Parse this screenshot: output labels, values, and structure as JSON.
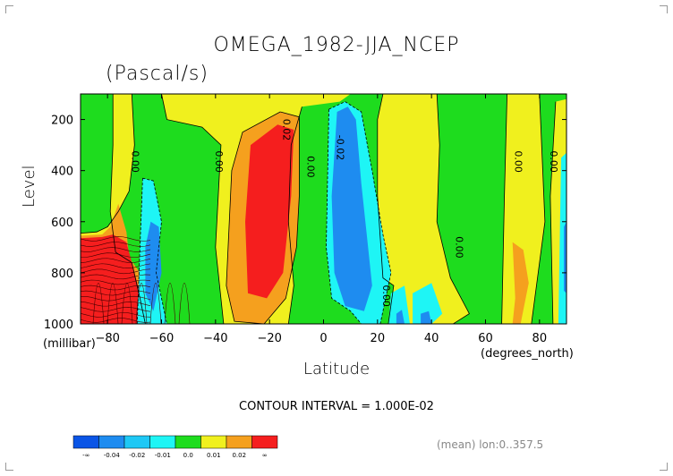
{
  "chart_data": {
    "type": "heatmap",
    "title": "OMEGA_1982-JJA_NCEP",
    "units": "(Pascal/s)",
    "xlabel": "Latitude",
    "xunit": "(degrees_north)",
    "ylabel": "Level",
    "yunit": "(millibar)",
    "xlim": [
      -90,
      90
    ],
    "ylim": [
      1000,
      100
    ],
    "x_ticks": [
      -80,
      -60,
      -40,
      -20,
      0,
      20,
      40,
      60,
      80
    ],
    "y_ticks": [
      200,
      400,
      600,
      800,
      1000
    ],
    "contour_interval": "CONTOUR INTERVAL = 1.000E-02",
    "contour_labels": [
      {
        "text": "0.00",
        "lat": -71,
        "lev": 365
      },
      {
        "text": "0.00",
        "lat": -40,
        "lev": 365
      },
      {
        "text": "0.02",
        "lat": -15,
        "lev": 240
      },
      {
        "text": "0.00",
        "lat": -6,
        "lev": 385
      },
      {
        "text": "-0.02",
        "lat": 5,
        "lev": 310
      },
      {
        "text": "0.00",
        "lat": 49,
        "lev": 700
      },
      {
        "text": "0.00",
        "lat": 22,
        "lev": 890
      },
      {
        "text": "0.00",
        "lat": 71,
        "lev": 365
      },
      {
        "text": "0.00",
        "lat": 84,
        "lev": 365
      }
    ],
    "legend": {
      "bins": [
        {
          "color": "#0a55e6",
          "label": "-∞"
        },
        {
          "color": "#1e8cf0",
          "label": "-0.04"
        },
        {
          "color": "#1ec8f5",
          "label": "-0.02"
        },
        {
          "color": "#1ef5f5",
          "label": "-0.01"
        },
        {
          "color": "#1edc1e",
          "label": "0.0"
        },
        {
          "color": "#f0f01e",
          "label": "0.01"
        },
        {
          "color": "#f5a01e",
          "label": "0.02"
        },
        {
          "color": "#f51e1e",
          "label": "∞"
        }
      ]
    },
    "regions": [
      {
        "level": "0.0",
        "color": "#1edc1e",
        "poly": [
          [
            -90,
            100
          ],
          [
            90,
            100
          ],
          [
            90,
            1000
          ],
          [
            -90,
            1000
          ]
        ]
      },
      {
        "level": "0.01",
        "color": "#f0f01e",
        "poly": [
          [
            -78,
            100
          ],
          [
            -71,
            100
          ],
          [
            -70,
            300
          ],
          [
            -72,
            480
          ],
          [
            -76,
            560
          ],
          [
            -80,
            620
          ],
          [
            -84,
            640
          ],
          [
            -90,
            645
          ],
          [
            -90,
            1000
          ],
          [
            -66,
            1000
          ],
          [
            -68,
            900
          ],
          [
            -71,
            760
          ],
          [
            -77,
            720
          ],
          [
            -79,
            560
          ],
          [
            -78,
            300
          ]
        ]
      },
      {
        "level": "0.01",
        "color": "#f0f01e",
        "poly": [
          [
            -60,
            100
          ],
          [
            10,
            100
          ],
          [
            6,
            130
          ],
          [
            -8,
            150
          ],
          [
            -12,
            300
          ],
          [
            -13,
            600
          ],
          [
            -11,
            850
          ],
          [
            -13,
            1000
          ],
          [
            -37,
            1000
          ],
          [
            -40,
            700
          ],
          [
            -38,
            300
          ],
          [
            -45,
            230
          ],
          [
            -58,
            200
          ]
        ]
      },
      {
        "level": "0.01",
        "color": "#f0f01e",
        "poly": [
          [
            22,
            100
          ],
          [
            42,
            100
          ],
          [
            43,
            300
          ],
          [
            42,
            600
          ],
          [
            47,
            820
          ],
          [
            54,
            960
          ],
          [
            48,
            1000
          ],
          [
            24,
            1000
          ],
          [
            26,
            850
          ],
          [
            22,
            820
          ],
          [
            20,
            500
          ],
          [
            20,
            200
          ]
        ]
      },
      {
        "level": "0.01",
        "color": "#f0f01e",
        "poly": [
          [
            68,
            100
          ],
          [
            80,
            100
          ],
          [
            82,
            600
          ],
          [
            77,
            1000
          ],
          [
            66,
            1000
          ],
          [
            67,
            500
          ]
        ]
      },
      {
        "level": "0.01",
        "color": "#f0f01e",
        "poly": [
          [
            86,
            130
          ],
          [
            90,
            120
          ],
          [
            90,
            1000
          ],
          [
            85,
            1000
          ],
          [
            84,
            500
          ]
        ]
      },
      {
        "level": "0.02",
        "color": "#f5a01e",
        "poly": [
          [
            -90,
            655
          ],
          [
            -82,
            650
          ],
          [
            -79,
            620
          ],
          [
            -76,
            530
          ],
          [
            -73,
            640
          ],
          [
            -72,
            740
          ],
          [
            -68,
            800
          ],
          [
            -64,
            1000
          ],
          [
            -90,
            1000
          ]
        ]
      },
      {
        "level": "0.02",
        "color": "#f5a01e",
        "poly": [
          [
            -16,
            170
          ],
          [
            -9,
            190
          ],
          [
            -9,
            500
          ],
          [
            -10,
            700
          ],
          [
            -14,
            900
          ],
          [
            -22,
            1000
          ],
          [
            -33,
            990
          ],
          [
            -36,
            850
          ],
          [
            -34,
            400
          ],
          [
            -30,
            250
          ]
        ]
      },
      {
        "level": "0.02",
        "color": "#f5a01e",
        "poly": [
          [
            70,
            680
          ],
          [
            74,
            710
          ],
          [
            76,
            840
          ],
          [
            73,
            1000
          ],
          [
            70,
            1000
          ],
          [
            71,
            900
          ]
        ]
      },
      {
        "level": "inf",
        "color": "#f51e1e",
        "poly": [
          [
            -90,
            665
          ],
          [
            -82,
            660
          ],
          [
            -78,
            650
          ],
          [
            -73,
            680
          ],
          [
            -70,
            800
          ],
          [
            -65,
            1000
          ],
          [
            -90,
            1000
          ]
        ]
      },
      {
        "level": "inf",
        "color": "#f51e1e",
        "poly": [
          [
            -17,
            220
          ],
          [
            -11,
            240
          ],
          [
            -12,
            500
          ],
          [
            -15,
            800
          ],
          [
            -21,
            900
          ],
          [
            -28,
            880
          ],
          [
            -29,
            600
          ],
          [
            -27,
            300
          ]
        ]
      },
      {
        "level": "-0.01",
        "color": "#1ef5f5",
        "poly": [
          [
            -67,
            430
          ],
          [
            -63,
            440
          ],
          [
            -60,
            600
          ],
          [
            -62,
            800
          ],
          [
            -58,
            1000
          ],
          [
            -69,
            1000
          ],
          [
            -68,
            700
          ]
        ]
      },
      {
        "level": "-0.01",
        "color": "#1ef5f5",
        "poly": [
          [
            2,
            160
          ],
          [
            8,
            130
          ],
          [
            14,
            170
          ],
          [
            18,
            400
          ],
          [
            22,
            650
          ],
          [
            25,
            800
          ],
          [
            21,
            1000
          ],
          [
            14,
            1000
          ],
          [
            10,
            950
          ],
          [
            3,
            900
          ],
          [
            1,
            700
          ]
        ]
      },
      {
        "level": "-0.01",
        "color": "#1ef5f5",
        "poly": [
          [
            25,
            880
          ],
          [
            30,
            850
          ],
          [
            32,
            1000
          ],
          [
            24,
            1000
          ]
        ]
      },
      {
        "level": "-0.01",
        "color": "#1ef5f5",
        "poly": [
          [
            33,
            880
          ],
          [
            40,
            840
          ],
          [
            44,
            960
          ],
          [
            40,
            1000
          ],
          [
            33,
            1000
          ]
        ]
      },
      {
        "level": "-0.01",
        "color": "#1ef5f5",
        "poly": [
          [
            88,
            350
          ],
          [
            90,
            330
          ],
          [
            90,
            1000
          ],
          [
            87,
            1000
          ]
        ]
      },
      {
        "level": "-0.02",
        "color": "#1e8cf0",
        "poly": [
          [
            -64,
            600
          ],
          [
            -61,
            620
          ],
          [
            -60,
            800
          ],
          [
            -63,
            950
          ],
          [
            -66,
            880
          ],
          [
            -66,
            700
          ]
        ]
      },
      {
        "level": "-0.02",
        "color": "#1e8cf0",
        "poly": [
          [
            5,
            170
          ],
          [
            9,
            150
          ],
          [
            12,
            200
          ],
          [
            14,
            450
          ],
          [
            16,
            650
          ],
          [
            18,
            850
          ],
          [
            15,
            950
          ],
          [
            8,
            930
          ],
          [
            4,
            800
          ],
          [
            3,
            500
          ]
        ]
      },
      {
        "level": "-0.02",
        "color": "#1e8cf0",
        "poly": [
          [
            27,
            960
          ],
          [
            29,
            945
          ],
          [
            30,
            1000
          ],
          [
            27,
            1000
          ]
        ]
      },
      {
        "level": "-0.02",
        "color": "#1e8cf0",
        "poly": [
          [
            36,
            960
          ],
          [
            39,
            950
          ],
          [
            40,
            1000
          ],
          [
            36,
            1000
          ]
        ]
      },
      {
        "level": "-0.02",
        "color": "#1e8cf0",
        "poly": [
          [
            89,
            620
          ],
          [
            90,
            600
          ],
          [
            90,
            880
          ],
          [
            89,
            870
          ]
        ]
      }
    ],
    "contours": [
      [
        [
          -78,
          100
        ],
        [
          -78,
          300
        ],
        [
          -79,
          560
        ],
        [
          -77,
          720
        ],
        [
          -71,
          760
        ],
        [
          -68,
          900
        ],
        [
          -66,
          1000
        ]
      ],
      [
        [
          -71,
          100
        ],
        [
          -70,
          300
        ],
        [
          -72,
          480
        ],
        [
          -76,
          560
        ],
        [
          -80,
          620
        ],
        [
          -84,
          640
        ],
        [
          -90,
          645
        ]
      ],
      [
        [
          -60,
          100
        ],
        [
          -58,
          200
        ],
        [
          -45,
          230
        ],
        [
          -38,
          300
        ],
        [
          -40,
          700
        ],
        [
          -37,
          1000
        ]
      ],
      [
        [
          -8,
          150
        ],
        [
          -12,
          300
        ],
        [
          -13,
          600
        ],
        [
          -11,
          850
        ],
        [
          -13,
          1000
        ]
      ],
      [
        [
          22,
          100
        ],
        [
          20,
          200
        ],
        [
          20,
          500
        ],
        [
          22,
          820
        ],
        [
          26,
          850
        ],
        [
          24,
          1000
        ]
      ],
      [
        [
          42,
          100
        ],
        [
          43,
          300
        ],
        [
          42,
          600
        ],
        [
          47,
          820
        ],
        [
          54,
          960
        ],
        [
          48,
          1000
        ]
      ],
      [
        [
          68,
          100
        ],
        [
          67,
          500
        ],
        [
          66,
          1000
        ]
      ],
      [
        [
          80,
          100
        ],
        [
          82,
          600
        ],
        [
          77,
          1000
        ]
      ],
      [
        [
          86,
          130
        ],
        [
          84,
          500
        ],
        [
          85,
          1000
        ]
      ],
      [
        [
          -16,
          170
        ],
        [
          -30,
          250
        ],
        [
          -34,
          400
        ],
        [
          -36,
          850
        ],
        [
          -33,
          990
        ],
        [
          -22,
          1000
        ]
      ],
      [
        [
          -16,
          170
        ],
        [
          -9,
          190
        ],
        [
          -9,
          500
        ],
        [
          -10,
          700
        ],
        [
          -14,
          900
        ],
        [
          -22,
          1000
        ]
      ]
    ],
    "dashed_contours": [
      [
        [
          -67,
          430
        ],
        [
          -68,
          700
        ],
        [
          -69,
          1000
        ]
      ],
      [
        [
          -67,
          430
        ],
        [
          -63,
          440
        ],
        [
          -60,
          600
        ],
        [
          -62,
          800
        ],
        [
          -58,
          1000
        ]
      ],
      [
        [
          2,
          160
        ],
        [
          1,
          700
        ],
        [
          3,
          900
        ],
        [
          10,
          950
        ],
        [
          14,
          1000
        ]
      ],
      [
        [
          2,
          160
        ],
        [
          8,
          130
        ],
        [
          14,
          170
        ],
        [
          18,
          400
        ],
        [
          22,
          650
        ],
        [
          25,
          800
        ],
        [
          21,
          1000
        ]
      ]
    ],
    "dense_lines_region": {
      "lat_range": [
        -90,
        -64
      ],
      "lev_range": [
        660,
        1000
      ]
    }
  },
  "footer": {
    "mean_info": "(mean) lon:0..357.5"
  }
}
